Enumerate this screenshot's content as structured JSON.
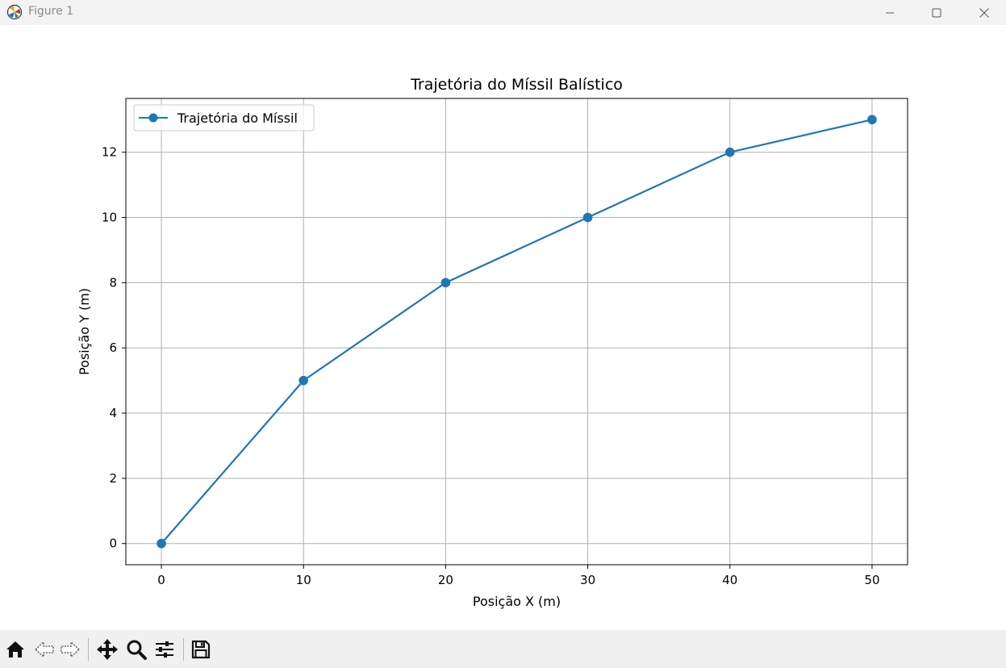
{
  "window": {
    "title": "Figure 1",
    "controls": [
      "minimize-icon",
      "maximize-icon",
      "close-icon"
    ]
  },
  "toolbar": {
    "tools": [
      "home-icon",
      "back-arrow-icon",
      "forward-arrow-icon",
      "pan-move-icon",
      "zoom-magnifier-icon",
      "configure-subplots-icon",
      "save-floppy-icon"
    ]
  },
  "chart_data": {
    "type": "line",
    "title": "Trajetória do Míssil Balístico",
    "xlabel": "Posição X (m)",
    "ylabel": "Posição Y (m)",
    "x": [
      0,
      10,
      20,
      30,
      40,
      50
    ],
    "series": [
      {
        "name": "Trajetória do Míssil",
        "values": [
          0,
          5,
          8,
          10,
          12,
          13
        ],
        "color": "#1f77b4",
        "marker": "circle"
      }
    ],
    "xticks": [
      "0",
      "10",
      "20",
      "30",
      "40",
      "50"
    ],
    "yticks": [
      "0",
      "2",
      "4",
      "6",
      "8",
      "10",
      "12"
    ],
    "xlim": [
      -2.5,
      52.5
    ],
    "ylim": [
      -0.65,
      13.65
    ],
    "grid": true,
    "legend": "upper-left"
  }
}
